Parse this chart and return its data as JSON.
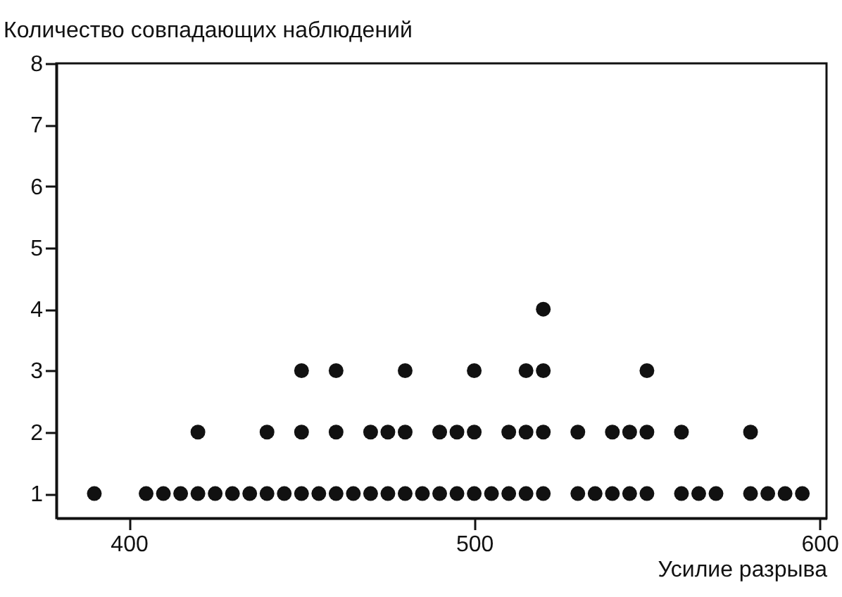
{
  "chart_data": {
    "type": "scatter",
    "xlabel": "Усилие разрыва",
    "ylabel": "Количество совпадающих наблюдений",
    "x": [
      390,
      405,
      410,
      415,
      420,
      420,
      425,
      430,
      435,
      440,
      440,
      445,
      450,
      450,
      450,
      455,
      460,
      460,
      460,
      465,
      470,
      470,
      475,
      475,
      480,
      480,
      480,
      485,
      490,
      490,
      495,
      495,
      500,
      500,
      500,
      505,
      510,
      510,
      515,
      515,
      515,
      520,
      520,
      520,
      520,
      530,
      530,
      535,
      540,
      540,
      545,
      545,
      550,
      550,
      550,
      560,
      560,
      565,
      570,
      580,
      580,
      585,
      590,
      595
    ],
    "values": [
      1,
      1,
      1,
      1,
      1,
      2,
      1,
      1,
      1,
      1,
      2,
      1,
      1,
      2,
      3,
      1,
      1,
      2,
      3,
      1,
      1,
      2,
      1,
      2,
      1,
      2,
      3,
      1,
      1,
      2,
      1,
      2,
      1,
      2,
      3,
      1,
      1,
      2,
      1,
      2,
      3,
      1,
      2,
      3,
      4,
      1,
      2,
      1,
      1,
      2,
      1,
      2,
      1,
      2,
      3,
      1,
      2,
      1,
      1,
      1,
      2,
      1,
      1,
      1
    ],
    "color": "#111111",
    "marker": "circle",
    "grid": false,
    "legend": false,
    "xlim": [
      379,
      602
    ],
    "xticks": [
      400,
      500,
      600
    ],
    "ylim": [
      0.6,
      8
    ],
    "yticks": [
      1,
      2,
      3,
      4,
      5,
      6,
      7,
      8
    ]
  }
}
